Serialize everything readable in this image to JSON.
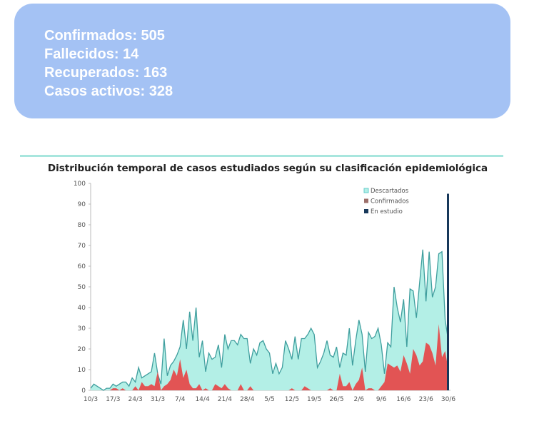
{
  "stats": {
    "lines": [
      "Confirmados: 505",
      "Fallecidos: 14",
      "Recuperados: 163",
      "Casos activos: 328"
    ]
  },
  "chart_data": {
    "type": "area",
    "title": "Distribución temporal de casos estudiados según su clasificación epidemiológica",
    "xlabel": "",
    "ylabel": "",
    "ylim": [
      0,
      100
    ],
    "yticks": [
      0,
      10,
      20,
      30,
      40,
      50,
      60,
      70,
      80,
      90,
      100
    ],
    "xtick_labels": [
      "10/3",
      "17/3",
      "24/3",
      "31/3",
      "7/4",
      "14/4",
      "21/4",
      "28/4",
      "5/5",
      "12/5",
      "19/5",
      "26/5",
      "2/6",
      "9/6",
      "16/6",
      "23/6",
      "30/6"
    ],
    "days": 113,
    "legend_position": "top-right",
    "colors": {
      "Descartados": "#b3efe6",
      "Descartados_line": "#3f9e9e",
      "Confirmados": "#e25454",
      "En estudio": "#17385a"
    },
    "series": [
      {
        "name": "Descartados",
        "values": [
          1,
          3,
          2,
          1,
          0,
          1,
          1,
          3,
          2,
          3,
          4,
          4,
          2,
          6,
          4,
          11,
          6,
          7,
          8,
          9,
          18,
          8,
          3,
          25,
          7,
          12,
          14,
          17,
          21,
          34,
          20,
          38,
          24,
          40,
          16,
          24,
          9,
          18,
          15,
          16,
          22,
          11,
          27,
          20,
          24,
          24,
          22,
          27,
          25,
          25,
          13,
          20,
          17,
          23,
          24,
          20,
          18,
          8,
          13,
          8,
          11,
          24,
          20,
          15,
          26,
          15,
          25,
          25,
          27,
          30,
          27,
          11,
          14,
          18,
          24,
          17,
          16,
          21,
          11,
          18,
          17,
          30,
          12,
          24,
          34,
          27,
          9,
          28,
          25,
          26,
          30,
          22,
          8,
          23,
          21,
          50,
          40,
          33,
          44,
          21,
          49,
          48,
          35,
          52,
          68,
          43,
          67,
          45,
          50,
          66,
          67,
          34,
          24
        ]
      },
      {
        "name": "Confirmados",
        "values": [
          0,
          0,
          0,
          0,
          0,
          0,
          0,
          1,
          1,
          0,
          1,
          0,
          0,
          0,
          2,
          0,
          4,
          2,
          2,
          3,
          2,
          9,
          0,
          2,
          3,
          5,
          10,
          7,
          15,
          6,
          10,
          3,
          1,
          1,
          3,
          0,
          1,
          0,
          0,
          3,
          2,
          1,
          3,
          1,
          0,
          0,
          0,
          3,
          0,
          0,
          2,
          0,
          0,
          0,
          0,
          0,
          0,
          0,
          0,
          0,
          0,
          0,
          0,
          1,
          0,
          0,
          0,
          2,
          1,
          0,
          0,
          0,
          0,
          0,
          0,
          1,
          0,
          0,
          8,
          2,
          2,
          4,
          0,
          3,
          5,
          11,
          0,
          1,
          1,
          0,
          0,
          2,
          4,
          13,
          12,
          11,
          12,
          9,
          17,
          13,
          8,
          20,
          17,
          12,
          14,
          23,
          22,
          18,
          12,
          32,
          16,
          19,
          10
        ]
      },
      {
        "name": "En estudio",
        "values": [
          0,
          0,
          0,
          0,
          0,
          0,
          0,
          0,
          0,
          0,
          0,
          0,
          0,
          0,
          0,
          0,
          0,
          0,
          0,
          0,
          0,
          0,
          0,
          0,
          0,
          0,
          0,
          0,
          0,
          0,
          0,
          0,
          0,
          0,
          0,
          0,
          0,
          0,
          0,
          0,
          0,
          0,
          0,
          0,
          0,
          0,
          0,
          0,
          0,
          0,
          0,
          0,
          0,
          0,
          0,
          0,
          0,
          0,
          0,
          0,
          0,
          0,
          0,
          0,
          0,
          0,
          0,
          0,
          0,
          0,
          0,
          0,
          0,
          0,
          0,
          0,
          0,
          0,
          0,
          0,
          0,
          0,
          0,
          0,
          0,
          0,
          0,
          0,
          0,
          0,
          0,
          0,
          0,
          0,
          0,
          0,
          0,
          0,
          0,
          0,
          0,
          0,
          0,
          0,
          0,
          0,
          0,
          0,
          0,
          0,
          0,
          0,
          95
        ]
      }
    ]
  }
}
